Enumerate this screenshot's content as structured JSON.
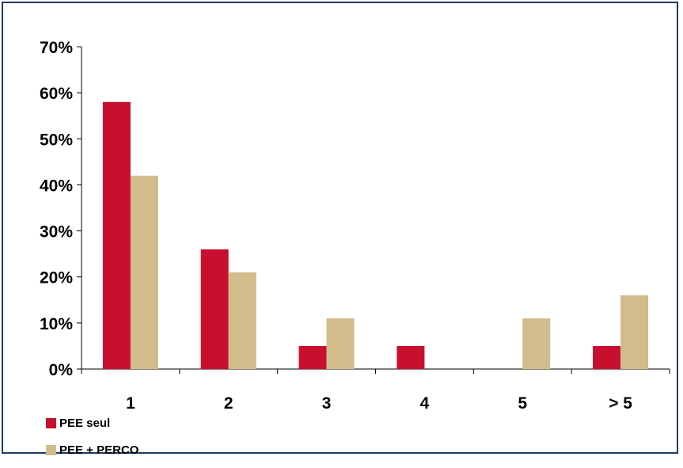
{
  "chart_data": {
    "type": "bar",
    "categories": [
      "1",
      "2",
      "3",
      "4",
      "5",
      "> 5"
    ],
    "series": [
      {
        "name": "PEE seul",
        "color": "#c8102e",
        "values": [
          58,
          26,
          5,
          5,
          0,
          5
        ]
      },
      {
        "name": "PEE + PERCO",
        "color": "#d2bc8c",
        "values": [
          42,
          21,
          11,
          0,
          11,
          16
        ]
      }
    ],
    "y_ticks": [
      "0%",
      "10%",
      "20%",
      "30%",
      "40%",
      "50%",
      "60%",
      "70%"
    ],
    "ylim": [
      0,
      70
    ],
    "grid": false,
    "legend_position": "bottom-left"
  }
}
